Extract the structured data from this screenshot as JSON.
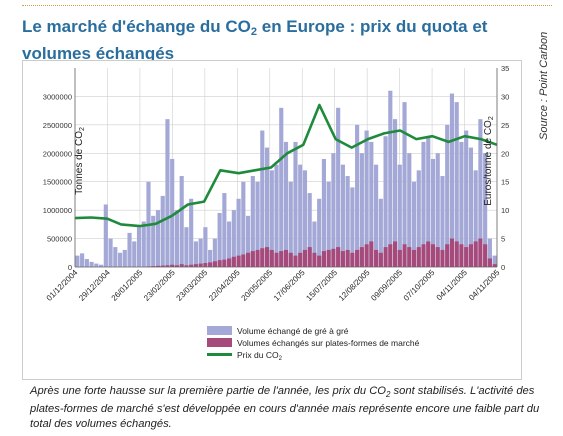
{
  "title": "Le marché d'échange du CO₂ en Europe : prix du quota et volumes échangés",
  "title_parts": {
    "before": "Le marché d'échange du CO",
    "sub": "2",
    "after": " en Europe : prix du quota et volumes échangés"
  },
  "source": "Source : Point Carbon",
  "caption_parts": {
    "before": "Après une forte hausse sur la première partie de l'année, les prix du CO",
    "sub": "2",
    "after": " sont stabilisés. L'activité des plates-formes de marché s'est développée en cours d'année mais représente encore une faible part du total des volumes échangés."
  },
  "chart_data": {
    "type": "bar",
    "ylabel_left": "Tonnes de CO2",
    "ylabel_right": "Euros/tonne de CO2",
    "ylim_left": [
      0,
      3500000
    ],
    "ylim_right": [
      0,
      35
    ],
    "yticks_left": [
      "0",
      "500000",
      "1000000",
      "1500000",
      "2000000",
      "2500000",
      "3000000"
    ],
    "yticks_right": [
      "0",
      "5",
      "10",
      "15",
      "20",
      "25",
      "30",
      "35"
    ],
    "x_ticks": [
      "01/12/2004",
      "29/12/2004",
      "26/01/2005",
      "23/02/2005",
      "23/03/2005",
      "22/04/2005",
      "20/05/2005",
      "17/06/2005",
      "15/07/2005",
      "12/08/2005",
      "09/09/2005",
      "07/10/2005",
      "04/11/2005",
      "04/11/2005"
    ],
    "grid": true,
    "legend_position": "bottom",
    "colors": {
      "otc": "#a3a8d6",
      "exchange": "#a64a7c",
      "price": "#1f8a3c"
    },
    "series": [
      {
        "name": "Volume échangé de gré à gré",
        "kind": "bar",
        "axis": "left",
        "values": [
          200000,
          240000,
          140000,
          90000,
          60000,
          40000,
          1100000,
          500000,
          350000,
          250000,
          300000,
          600000,
          450000,
          700000,
          800000,
          1500000,
          900000,
          1000000,
          1250000,
          2600000,
          1900000,
          1000000,
          1600000,
          700000,
          1200000,
          450000,
          500000,
          700000,
          300000,
          500000,
          950000,
          1300000,
          800000,
          1000000,
          1200000,
          1500000,
          900000,
          1600000,
          1500000,
          2400000,
          2100000,
          1700000,
          1800000,
          2800000,
          2200000,
          1500000,
          2200000,
          1800000,
          1700000,
          1300000,
          800000,
          1200000,
          1900000,
          1500000,
          2000000,
          2800000,
          1800000,
          1600000,
          1400000,
          2500000,
          2000000,
          2400000,
          2200000,
          1800000,
          1200000,
          2300000,
          3100000,
          2600000,
          1800000,
          2900000,
          2000000,
          1500000,
          1700000,
          2200000,
          2300000,
          1900000,
          2000000,
          1600000,
          2500000,
          3050000,
          2900000,
          2200000,
          2400000,
          2100000,
          1700000,
          2600000,
          2000000,
          500000,
          200000
        ]
      },
      {
        "name": "Volumes échangés sur plates-formes de marché",
        "kind": "bar",
        "axis": "left",
        "values": [
          0,
          0,
          0,
          0,
          0,
          0,
          0,
          0,
          0,
          0,
          0,
          0,
          0,
          0,
          0,
          10000,
          15000,
          20000,
          25000,
          30000,
          40000,
          30000,
          50000,
          30000,
          40000,
          50000,
          60000,
          70000,
          80000,
          100000,
          120000,
          130000,
          150000,
          180000,
          200000,
          220000,
          250000,
          280000,
          300000,
          330000,
          350000,
          300000,
          250000,
          280000,
          300000,
          250000,
          200000,
          250000,
          300000,
          350000,
          250000,
          200000,
          280000,
          300000,
          320000,
          350000,
          280000,
          300000,
          250000,
          300000,
          350000,
          400000,
          450000,
          300000,
          250000,
          350000,
          400000,
          450000,
          300000,
          400000,
          350000,
          300000,
          350000,
          400000,
          450000,
          400000,
          350000,
          300000,
          400000,
          500000,
          450000,
          400000,
          350000,
          400000,
          450000,
          500000,
          400000,
          150000,
          50000
        ]
      },
      {
        "name": "Prix du CO2",
        "kind": "line",
        "axis": "right",
        "points": [
          [
            "01/12/2004",
            8.6
          ],
          [
            "15/12/2004",
            8.7
          ],
          [
            "29/12/2004",
            8.5
          ],
          [
            "10/01/2005",
            7.5
          ],
          [
            "26/01/2005",
            7.2
          ],
          [
            "09/02/2005",
            7.6
          ],
          [
            "23/02/2005",
            9.0
          ],
          [
            "09/03/2005",
            11.0
          ],
          [
            "23/03/2005",
            11.5
          ],
          [
            "06/04/2005",
            17.0
          ],
          [
            "22/04/2005",
            16.5
          ],
          [
            "06/05/2005",
            17.0
          ],
          [
            "20/05/2005",
            17.5
          ],
          [
            "03/06/2005",
            20.0
          ],
          [
            "17/06/2005",
            21.5
          ],
          [
            "01/07/2005",
            28.5
          ],
          [
            "15/07/2005",
            22.5
          ],
          [
            "29/07/2005",
            21.0
          ],
          [
            "12/08/2005",
            22.5
          ],
          [
            "26/08/2005",
            23.5
          ],
          [
            "09/09/2005",
            24.0
          ],
          [
            "23/09/2005",
            22.5
          ],
          [
            "07/10/2005",
            23.0
          ],
          [
            "21/10/2005",
            22.0
          ],
          [
            "04/11/2005",
            23.0
          ],
          [
            "18/11/2005",
            22.5
          ],
          [
            "02/12/2005",
            21.5
          ]
        ]
      }
    ]
  }
}
